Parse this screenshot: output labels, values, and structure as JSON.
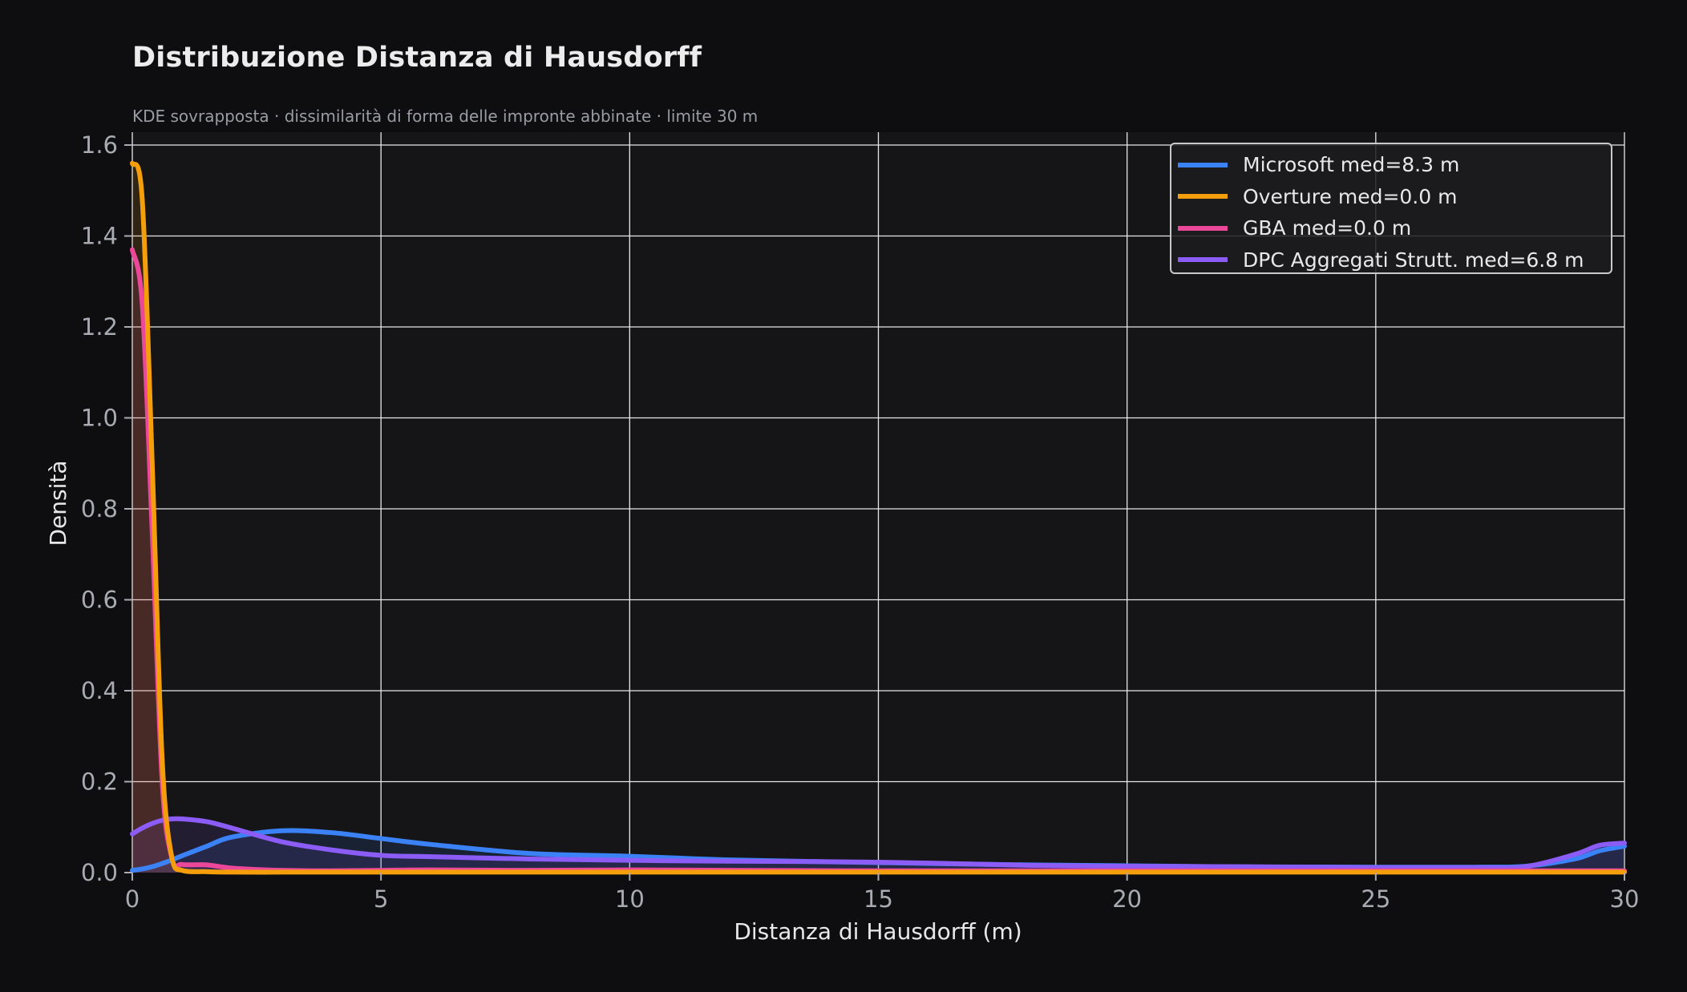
{
  "header": {
    "title": "Distribuzione Distanza di Hausdorff",
    "subtitle": "KDE sovrapposta · dissimilarità di forma delle impronte abbinate · limite 30 m"
  },
  "axes": {
    "xlabel": "Distanza di Hausdorff (m)",
    "ylabel": "Densità",
    "xticks": [
      "0",
      "5",
      "10",
      "15",
      "20",
      "25",
      "30"
    ],
    "yticks": [
      "0.0",
      "0.2",
      "0.4",
      "0.6",
      "0.8",
      "1.0",
      "1.2",
      "1.4",
      "1.6"
    ]
  },
  "legend": {
    "items": [
      {
        "label": "Microsoft  med=8.3 m",
        "color": "#3b82f6"
      },
      {
        "label": "Overture  med=0.0 m",
        "color": "#f59e0b"
      },
      {
        "label": "GBA  med=0.0 m",
        "color": "#ec4899"
      },
      {
        "label": "DPC Aggregati Strutt.  med=6.8 m",
        "color": "#8b5cf6"
      }
    ]
  },
  "chart_data": {
    "type": "line",
    "title": "Distribuzione Distanza di Hausdorff",
    "subtitle": "KDE sovrapposta · dissimilarità di forma delle impronte abbinate · limite 30 m",
    "xlabel": "Distanza di Hausdorff (m)",
    "ylabel": "Densità",
    "xlim": [
      0,
      30
    ],
    "ylim": [
      0,
      1.62
    ],
    "grid": true,
    "legend_position": "upper right",
    "x": [
      0,
      0.2,
      0.4,
      0.6,
      0.8,
      1,
      1.5,
      2,
      3,
      4,
      5,
      6,
      8,
      10,
      12,
      15,
      18,
      20,
      22,
      25,
      27,
      28,
      29,
      29.5,
      30
    ],
    "series": [
      {
        "name": "Microsoft",
        "median": "8.3 m",
        "color": "#3b82f6",
        "values": [
          0.005,
          0.008,
          0.013,
          0.02,
          0.028,
          0.037,
          0.058,
          0.078,
          0.092,
          0.088,
          0.075,
          0.062,
          0.042,
          0.036,
          0.028,
          0.022,
          0.017,
          0.015,
          0.013,
          0.012,
          0.012,
          0.014,
          0.03,
          0.048,
          0.058
        ]
      },
      {
        "name": "Overture",
        "median": "0.0 m",
        "color": "#f59e0b",
        "values": [
          1.56,
          1.48,
          0.9,
          0.25,
          0.03,
          0.005,
          0.002,
          0.001,
          0.001,
          0.001,
          0.001,
          0.001,
          0.001,
          0.001,
          0.001,
          0.001,
          0.001,
          0.001,
          0.001,
          0.001,
          0.001,
          0.001,
          0.001,
          0.001,
          0.001
        ]
      },
      {
        "name": "GBA",
        "median": "0.0 m",
        "color": "#ec4899",
        "values": [
          1.37,
          1.25,
          0.75,
          0.2,
          0.03,
          0.018,
          0.017,
          0.01,
          0.005,
          0.004,
          0.005,
          0.006,
          0.005,
          0.006,
          0.005,
          0.004,
          0.004,
          0.004,
          0.004,
          0.004,
          0.004,
          0.004,
          0.004,
          0.004,
          0.004
        ]
      },
      {
        "name": "DPC Aggregati Strutt.",
        "median": "6.8 m",
        "color": "#8b5cf6",
        "values": [
          0.085,
          0.098,
          0.108,
          0.115,
          0.118,
          0.118,
          0.112,
          0.098,
          0.068,
          0.05,
          0.038,
          0.035,
          0.03,
          0.027,
          0.025,
          0.023,
          0.016,
          0.014,
          0.013,
          0.011,
          0.011,
          0.013,
          0.04,
          0.06,
          0.065
        ]
      }
    ]
  }
}
